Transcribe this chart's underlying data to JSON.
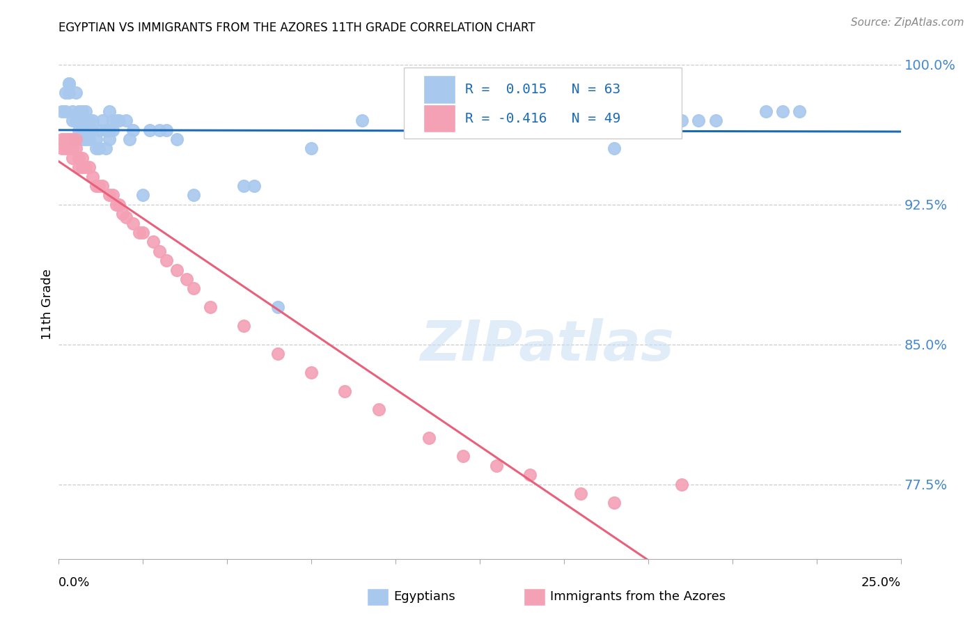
{
  "title": "EGYPTIAN VS IMMIGRANTS FROM THE AZORES 11TH GRADE CORRELATION CHART",
  "source": "Source: ZipAtlas.com",
  "ylabel": "11th Grade",
  "xlim": [
    0.0,
    0.25
  ],
  "ylim": [
    0.735,
    1.008
  ],
  "ytick_vals": [
    0.775,
    0.85,
    0.925,
    1.0
  ],
  "ytick_labels": [
    "77.5%",
    "85.0%",
    "92.5%",
    "100.0%"
  ],
  "blue_color": "#a8c8ee",
  "pink_color": "#f4a0b5",
  "blue_line_color": "#1a6ab5",
  "pink_line_color": "#e8607a",
  "dashed_line_color": "#c8c8c8",
  "watermark_color": "#c8dff5",
  "grid_color": "#cccccc",
  "right_tick_color": "#4488cc",
  "egyptians_x": [
    0.001,
    0.002,
    0.002,
    0.003,
    0.003,
    0.003,
    0.004,
    0.004,
    0.005,
    0.005,
    0.005,
    0.006,
    0.006,
    0.006,
    0.007,
    0.007,
    0.007,
    0.007,
    0.008,
    0.008,
    0.009,
    0.009,
    0.009,
    0.01,
    0.01,
    0.011,
    0.011,
    0.012,
    0.012,
    0.013,
    0.014,
    0.014,
    0.015,
    0.015,
    0.015,
    0.016,
    0.016,
    0.017,
    0.018,
    0.02,
    0.021,
    0.022,
    0.025,
    0.027,
    0.03,
    0.032,
    0.035,
    0.04,
    0.055,
    0.058,
    0.065,
    0.075,
    0.09,
    0.16,
    0.165,
    0.17,
    0.175,
    0.185,
    0.19,
    0.195,
    0.21,
    0.215,
    0.22
  ],
  "egyptians_y": [
    0.975,
    0.985,
    0.975,
    0.99,
    0.99,
    0.985,
    0.975,
    0.97,
    0.985,
    0.97,
    0.96,
    0.975,
    0.97,
    0.965,
    0.975,
    0.97,
    0.965,
    0.96,
    0.975,
    0.96,
    0.97,
    0.965,
    0.96,
    0.97,
    0.965,
    0.96,
    0.955,
    0.965,
    0.955,
    0.97,
    0.965,
    0.955,
    0.975,
    0.965,
    0.96,
    0.97,
    0.965,
    0.97,
    0.97,
    0.97,
    0.96,
    0.965,
    0.93,
    0.965,
    0.965,
    0.965,
    0.96,
    0.93,
    0.935,
    0.935,
    0.87,
    0.955,
    0.97,
    0.975,
    0.955,
    0.97,
    0.965,
    0.97,
    0.97,
    0.97,
    0.975,
    0.975,
    0.975
  ],
  "azores_x": [
    0.001,
    0.001,
    0.002,
    0.002,
    0.003,
    0.003,
    0.004,
    0.004,
    0.004,
    0.005,
    0.005,
    0.006,
    0.006,
    0.007,
    0.007,
    0.008,
    0.009,
    0.01,
    0.011,
    0.012,
    0.013,
    0.015,
    0.016,
    0.017,
    0.018,
    0.019,
    0.02,
    0.022,
    0.024,
    0.025,
    0.028,
    0.03,
    0.032,
    0.035,
    0.038,
    0.04,
    0.045,
    0.055,
    0.065,
    0.075,
    0.085,
    0.095,
    0.11,
    0.12,
    0.13,
    0.14,
    0.155,
    0.165,
    0.185
  ],
  "azores_y": [
    0.96,
    0.955,
    0.96,
    0.955,
    0.96,
    0.955,
    0.96,
    0.955,
    0.95,
    0.96,
    0.955,
    0.95,
    0.945,
    0.95,
    0.945,
    0.945,
    0.945,
    0.94,
    0.935,
    0.935,
    0.935,
    0.93,
    0.93,
    0.925,
    0.925,
    0.92,
    0.918,
    0.915,
    0.91,
    0.91,
    0.905,
    0.9,
    0.895,
    0.89,
    0.885,
    0.88,
    0.87,
    0.86,
    0.845,
    0.835,
    0.825,
    0.815,
    0.8,
    0.79,
    0.785,
    0.78,
    0.77,
    0.765,
    0.775
  ],
  "pink_line_x_end": 0.185,
  "legend_r1_val": "0.015",
  "legend_r1_n": "63",
  "legend_r2_val": "-0.416",
  "legend_r2_n": "49"
}
